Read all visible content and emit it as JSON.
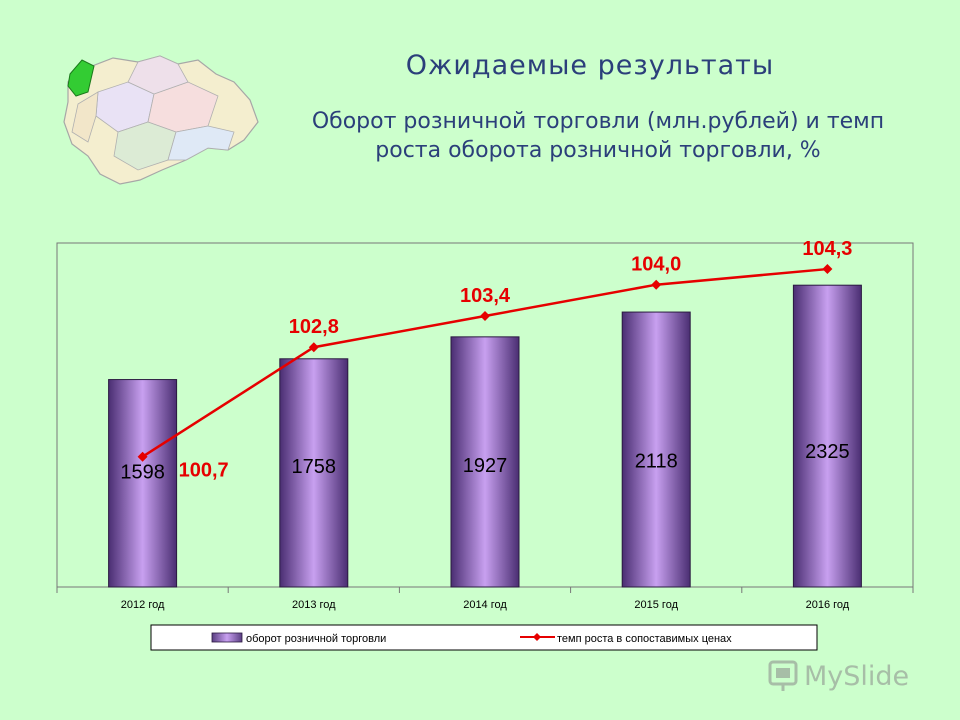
{
  "page": {
    "title": "Ожидаемые результаты",
    "subtitle": "Оборот розничной торговли (млн.рублей) и темп роста оборота розничной торговли, %",
    "watermark": "MySlide"
  },
  "chart_data": {
    "type": "bar+line",
    "categories": [
      "2012 год",
      "2013 год",
      "2014 год",
      "2015 год",
      "2016 год"
    ],
    "series": [
      {
        "name": "оборот розничной торговли",
        "type": "bar",
        "values": [
          1598,
          1758,
          1927,
          2118,
          2325
        ],
        "labels": [
          "1598",
          "1758",
          "1927",
          "2118",
          "2325"
        ],
        "color": "#8060a8"
      },
      {
        "name": "темп роста в сопоставимых ценах",
        "type": "line",
        "values": [
          100.7,
          102.8,
          103.4,
          104.0,
          104.3
        ],
        "labels": [
          "100,7",
          "102,8",
          "103,4",
          "104,0",
          "104,3"
        ],
        "color": "#e60000"
      }
    ],
    "bar_ylim": [
      0,
      2650
    ],
    "line_ylim": [
      98.2,
      104.8
    ],
    "grid": false,
    "legend": "bottom"
  }
}
